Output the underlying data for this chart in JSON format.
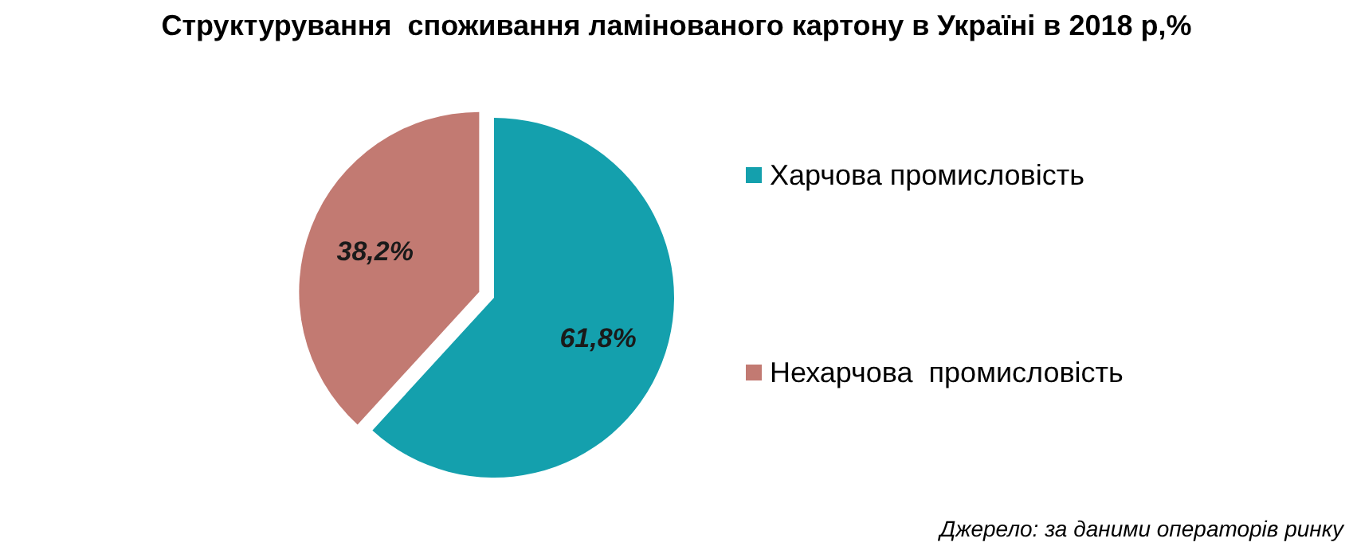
{
  "chart_data": {
    "type": "pie",
    "title": "Структурування  споживання ламінованого картону в Україні в 2018 р,%",
    "categories": [
      "Харчова промисловість",
      "Нехарчова  промисловість"
    ],
    "values": [
      61.8,
      38.2
    ],
    "value_labels": [
      "61,8%",
      "38,2%"
    ],
    "colors": [
      "#14a0ad",
      "#c27a72"
    ],
    "legend": "right",
    "annotations": [
      "Джерело: за даними операторів ринку"
    ]
  }
}
